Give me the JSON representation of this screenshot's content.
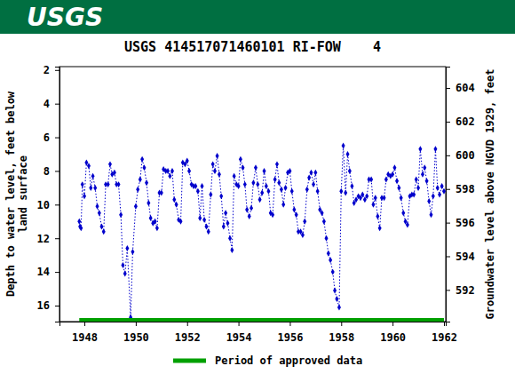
{
  "header": "USGS",
  "chart_data": {
    "type": "line",
    "title": "USGS 414517071460101 RI-FOW    4",
    "y_label": "Depth to water level, feet below land surface",
    "y2_label": "Groundwater level above NGVD 1929, feet",
    "xlim": [
      1947.03,
      1962.07
    ],
    "xticks": [
      1948,
      1950,
      1952,
      1954,
      1956,
      1958,
      1960,
      1962
    ],
    "ylim": [
      16.95,
      1.8
    ],
    "yticks": [
      2,
      4,
      6,
      8,
      10,
      12,
      14,
      16
    ],
    "y2lim": [
      590.12,
      605.27
    ],
    "y2ticks": [
      592,
      594,
      596,
      598,
      600,
      602,
      604
    ],
    "grid": false,
    "legend": "bottom",
    "series": [
      {
        "color": "#0000cc",
        "marker": "diamond",
        "line_style": "dotted",
        "x": [
          1947.8,
          1947.83,
          1947.87,
          1947.92,
          1948.0,
          1948.08,
          1948.17,
          1948.25,
          1948.33,
          1948.42,
          1948.5,
          1948.58,
          1948.67,
          1948.75,
          1948.83,
          1948.92,
          1949.0,
          1949.08,
          1949.17,
          1949.25,
          1949.33,
          1949.42,
          1949.5,
          1949.58,
          1949.67,
          1949.8,
          1949.88,
          1950.0,
          1950.08,
          1950.17,
          1950.25,
          1950.33,
          1950.42,
          1950.5,
          1950.58,
          1950.67,
          1950.75,
          1950.83,
          1950.92,
          1951.0,
          1951.08,
          1951.17,
          1951.25,
          1951.33,
          1951.42,
          1951.5,
          1951.58,
          1951.67,
          1951.75,
          1951.83,
          1951.92,
          1952.0,
          1952.08,
          1952.17,
          1952.25,
          1952.33,
          1952.42,
          1952.5,
          1952.58,
          1952.67,
          1952.75,
          1952.83,
          1952.92,
          1953.0,
          1953.08,
          1953.17,
          1953.25,
          1953.33,
          1953.42,
          1953.5,
          1953.58,
          1953.67,
          1953.75,
          1953.83,
          1953.92,
          1954.0,
          1954.08,
          1954.17,
          1954.25,
          1954.33,
          1954.42,
          1954.5,
          1954.58,
          1954.67,
          1954.75,
          1954.83,
          1954.92,
          1955.0,
          1955.08,
          1955.17,
          1955.25,
          1955.33,
          1955.42,
          1955.5,
          1955.58,
          1955.67,
          1955.75,
          1955.83,
          1955.92,
          1956.0,
          1956.08,
          1956.17,
          1956.25,
          1956.33,
          1956.42,
          1956.5,
          1956.58,
          1956.67,
          1956.75,
          1956.83,
          1956.92,
          1957.0,
          1957.08,
          1957.17,
          1957.25,
          1957.33,
          1957.42,
          1957.5,
          1957.58,
          1957.67,
          1957.75,
          1957.83,
          1957.92,
          1958.0,
          1958.08,
          1958.17,
          1958.25,
          1958.33,
          1958.42,
          1958.5,
          1958.58,
          1958.67,
          1958.75,
          1958.83,
          1958.92,
          1959.0,
          1959.08,
          1959.17,
          1959.25,
          1959.33,
          1959.42,
          1959.5,
          1959.58,
          1959.67,
          1959.75,
          1959.83,
          1959.92,
          1960.0,
          1960.08,
          1960.17,
          1960.25,
          1960.33,
          1960.42,
          1960.5,
          1960.58,
          1960.67,
          1960.75,
          1960.83,
          1960.92,
          1961.0,
          1961.08,
          1961.17,
          1961.25,
          1961.33,
          1961.42,
          1961.5,
          1961.58,
          1961.67,
          1961.75,
          1961.83,
          1961.92,
          1962.0
        ],
        "values": [
          11.0,
          11.3,
          11.4,
          8.8,
          9.5,
          7.5,
          7.7,
          9.0,
          8.3,
          9.0,
          10.1,
          10.5,
          11.3,
          11.6,
          8.8,
          8.8,
          7.6,
          8.2,
          8.1,
          8.8,
          8.8,
          10.6,
          13.6,
          14.1,
          12.6,
          16.7,
          12.8,
          10.1,
          9.1,
          8.5,
          7.3,
          7.8,
          8.7,
          9.9,
          10.8,
          11.1,
          11.0,
          11.4,
          9.3,
          9.3,
          7.9,
          8.0,
          8.0,
          8.3,
          8.0,
          9.7,
          10.0,
          10.9,
          11.0,
          7.5,
          7.6,
          7.4,
          8.0,
          8.8,
          8.9,
          8.9,
          9.2,
          10.8,
          8.9,
          10.9,
          11.3,
          11.6,
          9.4,
          7.6,
          8.0,
          7.1,
          8.2,
          9.5,
          11.3,
          10.5,
          11.1,
          12.0,
          12.7,
          8.3,
          8.8,
          8.9,
          7.3,
          7.8,
          8.8,
          10.3,
          10.7,
          10.2,
          8.7,
          7.8,
          8.8,
          9.7,
          9.3,
          8.0,
          8.9,
          9.2,
          10.5,
          10.6,
          8.5,
          7.6,
          8.7,
          9.1,
          10.0,
          9.0,
          8.1,
          8.0,
          9.2,
          10.3,
          10.6,
          11.6,
          11.6,
          11.8,
          11.0,
          9.1,
          8.4,
          8.1,
          8.8,
          8.1,
          9.2,
          10.3,
          10.5,
          11.0,
          12.0,
          12.9,
          13.3,
          14.0,
          15.1,
          15.6,
          16.1,
          9.2,
          6.5,
          9.3,
          7.0,
          8.0,
          8.9,
          9.9,
          9.7,
          9.5,
          9.6,
          9.4,
          9.7,
          9.5,
          8.5,
          8.5,
          10.0,
          9.6,
          10.7,
          11.4,
          9.6,
          9.6,
          8.5,
          8.2,
          8.3,
          8.2,
          7.8,
          8.6,
          9.0,
          9.6,
          10.5,
          11.0,
          11.2,
          9.5,
          9.4,
          9.4,
          8.5,
          9.0,
          6.7,
          8.2,
          7.8,
          8.6,
          9.8,
          10.6,
          9.5,
          6.7,
          9.0,
          9.4,
          8.9,
          9.2
        ]
      },
      {
        "name": "Period of approved data",
        "color": "#00a000",
        "type": "period",
        "x": [
          1947.8,
          1962.0
        ]
      }
    ]
  }
}
